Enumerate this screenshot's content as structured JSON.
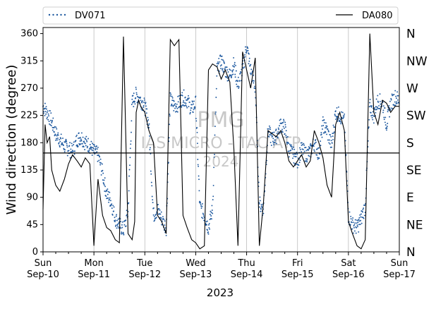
{
  "chart_data": {
    "type": "line",
    "xlabel": "2023",
    "ylabel": "Wind direction (degree)",
    "ylim": [
      0,
      370
    ],
    "xlim": [
      "2023-09-10 00:00",
      "2023-09-17 00:00"
    ],
    "grid": "vertical at day ticks",
    "legend_placement": "top, above plot",
    "y_ticks": [
      "0",
      "45",
      "90",
      "135",
      "180",
      "225",
      "270",
      "315",
      "360"
    ],
    "compass_labels": [
      "N",
      "NE",
      "E",
      "SE",
      "S",
      "SW",
      "W",
      "NW",
      "N"
    ],
    "x_ticks": [
      {
        "top": "Sun",
        "bottom": "Sep-10"
      },
      {
        "top": "Mon",
        "bottom": "Sep-11"
      },
      {
        "top": "Tue",
        "bottom": "Sep-12"
      },
      {
        "top": "Wed",
        "bottom": "Sep-13"
      },
      {
        "top": "Thu",
        "bottom": "Sep-14"
      },
      {
        "top": "Fri",
        "bottom": "Sep-15"
      },
      {
        "top": "Sat",
        "bottom": "Sep-16"
      },
      {
        "top": "Sun",
        "bottom": "Sep-17"
      }
    ],
    "reference_line": {
      "y": 163,
      "color": "#000000"
    },
    "watermark": [
      "PMG",
      "IAS MICRO - TAC ATP",
      "2024"
    ],
    "series": [
      {
        "name": "DV071",
        "style": "dotted points",
        "color": "#1f5aa0",
        "x_days": [
          0.0,
          0.08,
          0.17,
          0.25,
          0.33,
          0.42,
          0.5,
          0.58,
          0.67,
          0.75,
          0.83,
          0.92,
          1.0,
          1.08,
          1.17,
          1.25,
          1.33,
          1.42,
          1.5,
          1.58,
          1.67,
          1.75,
          1.83,
          1.92,
          2.0,
          2.08,
          2.17,
          2.25,
          2.33,
          2.42,
          2.5,
          2.58,
          2.67,
          2.75,
          2.83,
          2.92,
          3.0,
          3.08,
          3.17,
          3.25,
          3.33,
          3.42,
          3.5,
          3.58,
          3.67,
          3.75,
          3.83,
          3.92,
          4.0,
          4.08,
          4.17,
          4.25,
          4.33,
          4.42,
          4.5,
          4.58,
          4.67,
          4.75,
          4.83,
          4.92,
          5.0,
          5.08,
          5.17,
          5.25,
          5.33,
          5.42,
          5.5,
          5.58,
          5.67,
          5.75,
          5.83,
          5.92,
          6.0,
          6.08,
          6.17,
          6.25,
          6.33,
          6.42,
          6.5,
          6.58,
          6.67,
          6.75,
          6.83,
          6.92,
          7.0
        ],
        "values": [
          240,
          230,
          215,
          195,
          185,
          175,
          170,
          165,
          185,
          190,
          180,
          175,
          165,
          160,
          130,
          95,
          85,
          55,
          45,
          35,
          65,
          245,
          260,
          250,
          240,
          210,
          60,
          70,
          55,
          40,
          250,
          240,
          245,
          255,
          250,
          235,
          245,
          75,
          60,
          40,
          70,
          300,
          315,
          300,
          290,
          310,
          275,
          300,
          340,
          300,
          270,
          80,
          70,
          200,
          185,
          190,
          210,
          205,
          170,
          160,
          150,
          170,
          160,
          165,
          180,
          160,
          210,
          200,
          175,
          230,
          225,
          215,
          60,
          45,
          40,
          55,
          75,
          240,
          225,
          250,
          245,
          210,
          245,
          255,
          250
        ]
      },
      {
        "name": "DA080",
        "style": "solid line",
        "color": "#000000",
        "x_days": [
          0.0,
          0.04,
          0.08,
          0.13,
          0.17,
          0.25,
          0.33,
          0.42,
          0.5,
          0.58,
          0.67,
          0.75,
          0.83,
          0.92,
          1.0,
          1.08,
          1.17,
          1.25,
          1.33,
          1.42,
          1.5,
          1.58,
          1.67,
          1.75,
          1.8,
          1.83,
          1.88,
          1.92,
          2.0,
          2.08,
          2.17,
          2.25,
          2.33,
          2.42,
          2.5,
          2.58,
          2.67,
          2.75,
          2.83,
          2.92,
          3.0,
          3.08,
          3.17,
          3.25,
          3.33,
          3.42,
          3.5,
          3.58,
          3.67,
          3.75,
          3.83,
          3.92,
          4.0,
          4.08,
          4.17,
          4.25,
          4.33,
          4.42,
          4.5,
          4.58,
          4.67,
          4.75,
          4.83,
          4.92,
          5.0,
          5.08,
          5.17,
          5.25,
          5.33,
          5.42,
          5.5,
          5.58,
          5.67,
          5.75,
          5.83,
          5.92,
          6.0,
          6.08,
          6.17,
          6.25,
          6.33,
          6.42,
          6.5,
          6.58,
          6.67,
          6.75,
          6.83,
          6.92,
          7.0
        ],
        "values": [
          70,
          210,
          180,
          190,
          135,
          110,
          100,
          120,
          145,
          160,
          150,
          140,
          155,
          145,
          10,
          120,
          60,
          40,
          35,
          20,
          15,
          355,
          30,
          20,
          50,
          230,
          250,
          240,
          230,
          200,
          180,
          60,
          50,
          30,
          350,
          340,
          350,
          60,
          40,
          20,
          15,
          5,
          10,
          300,
          310,
          305,
          285,
          300,
          280,
          170,
          10,
          330,
          300,
          270,
          320,
          10,
          80,
          200,
          195,
          190,
          200,
          180,
          150,
          140,
          150,
          160,
          140,
          150,
          200,
          180,
          155,
          110,
          90,
          210,
          230,
          200,
          50,
          30,
          10,
          5,
          20,
          360,
          230,
          210,
          250,
          245,
          230,
          240,
          240
        ]
      }
    ]
  }
}
